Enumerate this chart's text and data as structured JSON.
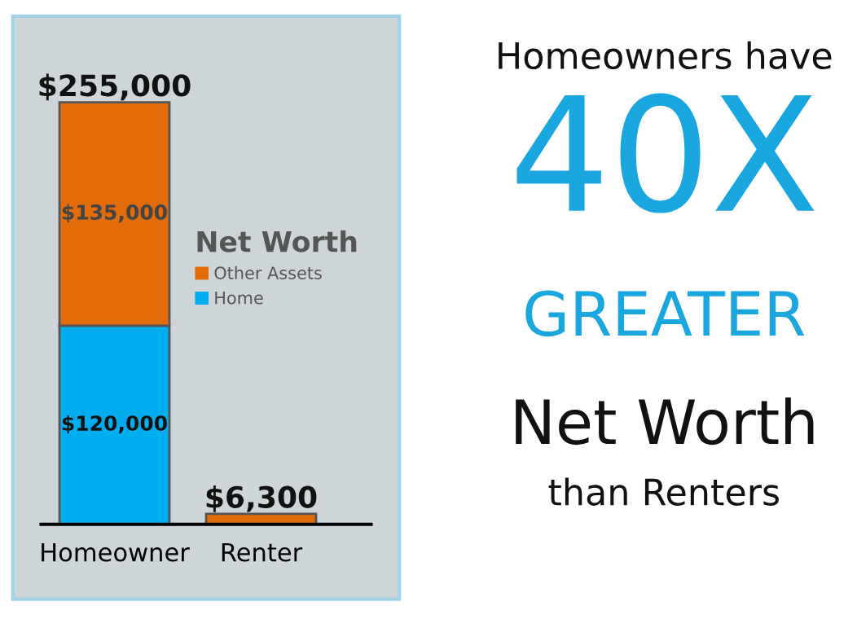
{
  "chart_data": {
    "type": "bar",
    "stacked": true,
    "categories": [
      "Homeowner",
      "Renter"
    ],
    "series": [
      {
        "name": "Home",
        "color": "#00adef",
        "values": [
          120000,
          null
        ],
        "value_labels": [
          "$120,000",
          null
        ]
      },
      {
        "name": "Other Assets",
        "color": "#e36c0a",
        "values": [
          135000,
          6300
        ],
        "value_labels": [
          "$135,000",
          null
        ]
      }
    ],
    "totals": [
      "$255,000",
      "$6,300"
    ],
    "legend": "right",
    "legend_title": "Net Worth",
    "grid": false,
    "annotations": [
      "Homeowners have",
      "40X",
      "GREATER",
      "Net Worth",
      "than Renters"
    ]
  }
}
